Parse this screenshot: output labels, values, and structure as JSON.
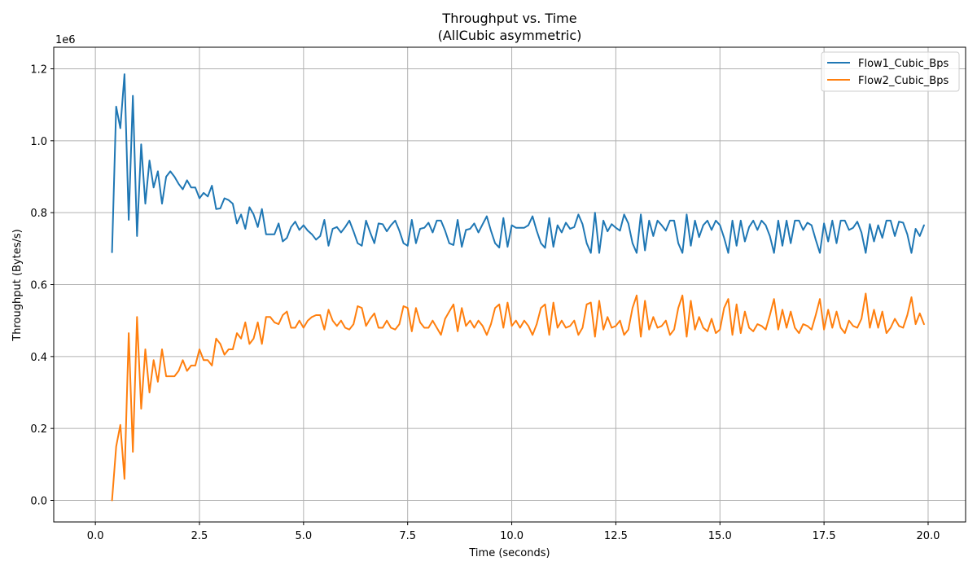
{
  "chart_data": {
    "type": "line",
    "title": "Throughput vs. Time",
    "subtitle": "(AllCubic asymmetric)",
    "xlabel": "Time (seconds)",
    "ylabel": "Throughput (Bytes/s)",
    "y_offset_text": "1e6",
    "xlim": [
      -1.0,
      20.9
    ],
    "ylim": [
      -0.06,
      1.26
    ],
    "y_scale_factor": 1000000,
    "x_ticks": [
      0.0,
      2.5,
      5.0,
      7.5,
      10.0,
      12.5,
      15.0,
      17.5,
      20.0
    ],
    "x_tick_labels": [
      "0.0",
      "2.5",
      "5.0",
      "7.5",
      "10.0",
      "12.5",
      "15.0",
      "17.5",
      "20.0"
    ],
    "y_ticks": [
      0.0,
      0.2,
      0.4,
      0.6,
      0.8,
      1.0,
      1.2
    ],
    "y_tick_labels": [
      "0.0",
      "0.2",
      "0.4",
      "0.6",
      "0.8",
      "1.0",
      "1.2"
    ],
    "grid": true,
    "legend_position": "top-right",
    "series": [
      {
        "name": "Flow1_Cubic_Bps",
        "color": "#1f77b4",
        "x": [
          0.4,
          0.5,
          0.6,
          0.7,
          0.8,
          0.9,
          1.0,
          1.1,
          1.2,
          1.3,
          1.4,
          1.5,
          1.6,
          1.7,
          1.8,
          1.9,
          2.0,
          2.1,
          2.2,
          2.3,
          2.4,
          2.5,
          2.6,
          2.7,
          2.8,
          2.9,
          3.0,
          3.1,
          3.2,
          3.3,
          3.4,
          3.5,
          3.6,
          3.7,
          3.8,
          3.9,
          4.0,
          4.1,
          4.2,
          4.3,
          4.4,
          4.5,
          4.6,
          4.7,
          4.8,
          4.9,
          5.0,
          5.1,
          5.2,
          5.3,
          5.4,
          5.5,
          5.6,
          5.7,
          5.8,
          5.9,
          6.0,
          6.1,
          6.2,
          6.3,
          6.4,
          6.5,
          6.6,
          6.7,
          6.8,
          6.9,
          7.0,
          7.1,
          7.2,
          7.3,
          7.4,
          7.5,
          7.6,
          7.7,
          7.8,
          7.9,
          8.0,
          8.1,
          8.2,
          8.3,
          8.4,
          8.5,
          8.6,
          8.7,
          8.8,
          8.9,
          9.0,
          9.1,
          9.2,
          9.3,
          9.4,
          9.5,
          9.6,
          9.7,
          9.8,
          9.9,
          10.0,
          10.1,
          10.2,
          10.3,
          10.4,
          10.5,
          10.6,
          10.7,
          10.8,
          10.9,
          11.0,
          11.1,
          11.2,
          11.3,
          11.4,
          11.5,
          11.6,
          11.7,
          11.8,
          11.9,
          12.0,
          12.1,
          12.2,
          12.3,
          12.4,
          12.5,
          12.6,
          12.7,
          12.8,
          12.9,
          13.0,
          13.1,
          13.2,
          13.3,
          13.4,
          13.5,
          13.6,
          13.7,
          13.8,
          13.9,
          14.0,
          14.1,
          14.2,
          14.3,
          14.4,
          14.5,
          14.6,
          14.7,
          14.8,
          14.9,
          15.0,
          15.1,
          15.2,
          15.3,
          15.4,
          15.5,
          15.6,
          15.7,
          15.8,
          15.9,
          16.0,
          16.1,
          16.2,
          16.3,
          16.4,
          16.5,
          16.6,
          16.7,
          16.8,
          16.9,
          17.0,
          17.1,
          17.2,
          17.3,
          17.4,
          17.5,
          17.6,
          17.7,
          17.8,
          17.9,
          18.0,
          18.1,
          18.2,
          18.3,
          18.4,
          18.5,
          18.6,
          18.7,
          18.8,
          18.9,
          19.0,
          19.1,
          19.2,
          19.3,
          19.4,
          19.5,
          19.6,
          19.7,
          19.8,
          19.9
        ],
        "y": [
          0.69,
          1.095,
          1.035,
          1.185,
          0.78,
          1.125,
          0.735,
          0.99,
          0.825,
          0.945,
          0.87,
          0.915,
          0.825,
          0.9,
          0.915,
          0.9,
          0.88,
          0.865,
          0.89,
          0.87,
          0.87,
          0.84,
          0.855,
          0.845,
          0.875,
          0.81,
          0.812,
          0.84,
          0.835,
          0.825,
          0.77,
          0.795,
          0.755,
          0.815,
          0.795,
          0.76,
          0.81,
          0.74,
          0.74,
          0.74,
          0.77,
          0.72,
          0.73,
          0.76,
          0.775,
          0.752,
          0.765,
          0.75,
          0.74,
          0.725,
          0.735,
          0.78,
          0.708,
          0.755,
          0.76,
          0.745,
          0.76,
          0.778,
          0.748,
          0.715,
          0.708,
          0.778,
          0.745,
          0.715,
          0.77,
          0.768,
          0.748,
          0.765,
          0.778,
          0.75,
          0.715,
          0.708,
          0.78,
          0.715,
          0.755,
          0.758,
          0.772,
          0.745,
          0.778,
          0.778,
          0.75,
          0.715,
          0.71,
          0.78,
          0.705,
          0.752,
          0.755,
          0.77,
          0.745,
          0.768,
          0.79,
          0.75,
          0.715,
          0.703,
          0.785,
          0.705,
          0.765,
          0.758,
          0.758,
          0.758,
          0.765,
          0.79,
          0.75,
          0.715,
          0.702,
          0.785,
          0.705,
          0.765,
          0.745,
          0.772,
          0.755,
          0.76,
          0.795,
          0.768,
          0.715,
          0.688,
          0.8,
          0.688,
          0.778,
          0.748,
          0.768,
          0.758,
          0.75,
          0.795,
          0.77,
          0.715,
          0.688,
          0.795,
          0.695,
          0.778,
          0.735,
          0.778,
          0.765,
          0.75,
          0.778,
          0.778,
          0.715,
          0.688,
          0.795,
          0.708,
          0.778,
          0.732,
          0.765,
          0.778,
          0.752,
          0.778,
          0.765,
          0.73,
          0.688,
          0.778,
          0.708,
          0.778,
          0.72,
          0.76,
          0.778,
          0.752,
          0.778,
          0.765,
          0.735,
          0.688,
          0.778,
          0.708,
          0.778,
          0.715,
          0.778,
          0.778,
          0.752,
          0.772,
          0.765,
          0.725,
          0.688,
          0.77,
          0.72,
          0.778,
          0.715,
          0.778,
          0.778,
          0.752,
          0.758,
          0.775,
          0.745,
          0.688,
          0.768,
          0.72,
          0.765,
          0.73,
          0.778,
          0.778,
          0.735,
          0.775,
          0.772,
          0.74,
          0.688,
          0.755,
          0.735,
          0.765
        ]
      },
      {
        "name": "Flow2_Cubic_Bps",
        "color": "#ff7f0e",
        "x": [
          0.4,
          0.5,
          0.6,
          0.7,
          0.8,
          0.9,
          1.0,
          1.1,
          1.2,
          1.3,
          1.4,
          1.5,
          1.6,
          1.7,
          1.8,
          1.9,
          2.0,
          2.1,
          2.2,
          2.3,
          2.4,
          2.5,
          2.6,
          2.7,
          2.8,
          2.9,
          3.0,
          3.1,
          3.2,
          3.3,
          3.4,
          3.5,
          3.6,
          3.7,
          3.8,
          3.9,
          4.0,
          4.1,
          4.2,
          4.3,
          4.4,
          4.5,
          4.6,
          4.7,
          4.8,
          4.9,
          5.0,
          5.1,
          5.2,
          5.3,
          5.4,
          5.5,
          5.6,
          5.7,
          5.8,
          5.9,
          6.0,
          6.1,
          6.2,
          6.3,
          6.4,
          6.5,
          6.6,
          6.7,
          6.8,
          6.9,
          7.0,
          7.1,
          7.2,
          7.3,
          7.4,
          7.5,
          7.6,
          7.7,
          7.8,
          7.9,
          8.0,
          8.1,
          8.2,
          8.3,
          8.4,
          8.5,
          8.6,
          8.7,
          8.8,
          8.9,
          9.0,
          9.1,
          9.2,
          9.3,
          9.4,
          9.5,
          9.6,
          9.7,
          9.8,
          9.9,
          10.0,
          10.1,
          10.2,
          10.3,
          10.4,
          10.5,
          10.6,
          10.7,
          10.8,
          10.9,
          11.0,
          11.1,
          11.2,
          11.3,
          11.4,
          11.5,
          11.6,
          11.7,
          11.8,
          11.9,
          12.0,
          12.1,
          12.2,
          12.3,
          12.4,
          12.5,
          12.6,
          12.7,
          12.8,
          12.9,
          13.0,
          13.1,
          13.2,
          13.3,
          13.4,
          13.5,
          13.6,
          13.7,
          13.8,
          13.9,
          14.0,
          14.1,
          14.2,
          14.3,
          14.4,
          14.5,
          14.6,
          14.7,
          14.8,
          14.9,
          15.0,
          15.1,
          15.2,
          15.3,
          15.4,
          15.5,
          15.6,
          15.7,
          15.8,
          15.9,
          16.0,
          16.1,
          16.2,
          16.3,
          16.4,
          16.5,
          16.6,
          16.7,
          16.8,
          16.9,
          17.0,
          17.1,
          17.2,
          17.3,
          17.4,
          17.5,
          17.6,
          17.7,
          17.8,
          17.9,
          18.0,
          18.1,
          18.2,
          18.3,
          18.4,
          18.5,
          18.6,
          18.7,
          18.8,
          18.9,
          19.0,
          19.1,
          19.2,
          19.3,
          19.4,
          19.5,
          19.6,
          19.7,
          19.8,
          19.9
        ],
        "y": [
          0.0,
          0.15,
          0.21,
          0.06,
          0.465,
          0.135,
          0.51,
          0.255,
          0.42,
          0.3,
          0.39,
          0.33,
          0.42,
          0.345,
          0.345,
          0.345,
          0.36,
          0.39,
          0.36,
          0.375,
          0.375,
          0.42,
          0.39,
          0.39,
          0.375,
          0.45,
          0.435,
          0.405,
          0.42,
          0.42,
          0.465,
          0.45,
          0.495,
          0.435,
          0.45,
          0.495,
          0.435,
          0.51,
          0.51,
          0.495,
          0.49,
          0.515,
          0.525,
          0.48,
          0.48,
          0.5,
          0.48,
          0.5,
          0.51,
          0.515,
          0.515,
          0.475,
          0.53,
          0.5,
          0.485,
          0.5,
          0.48,
          0.475,
          0.49,
          0.54,
          0.535,
          0.485,
          0.505,
          0.52,
          0.48,
          0.48,
          0.5,
          0.48,
          0.475,
          0.49,
          0.54,
          0.535,
          0.47,
          0.535,
          0.495,
          0.48,
          0.48,
          0.5,
          0.48,
          0.46,
          0.505,
          0.525,
          0.545,
          0.47,
          0.535,
          0.485,
          0.5,
          0.48,
          0.5,
          0.485,
          0.46,
          0.49,
          0.535,
          0.545,
          0.48,
          0.55,
          0.485,
          0.5,
          0.48,
          0.5,
          0.485,
          0.46,
          0.49,
          0.535,
          0.545,
          0.46,
          0.55,
          0.48,
          0.5,
          0.48,
          0.485,
          0.5,
          0.46,
          0.48,
          0.545,
          0.55,
          0.455,
          0.555,
          0.475,
          0.51,
          0.48,
          0.485,
          0.5,
          0.46,
          0.475,
          0.535,
          0.57,
          0.455,
          0.555,
          0.475,
          0.51,
          0.48,
          0.485,
          0.5,
          0.46,
          0.475,
          0.535,
          0.57,
          0.455,
          0.555,
          0.475,
          0.51,
          0.48,
          0.47,
          0.505,
          0.465,
          0.475,
          0.535,
          0.56,
          0.46,
          0.545,
          0.465,
          0.525,
          0.48,
          0.47,
          0.49,
          0.485,
          0.475,
          0.515,
          0.56,
          0.475,
          0.53,
          0.48,
          0.525,
          0.48,
          0.465,
          0.49,
          0.485,
          0.475,
          0.515,
          0.56,
          0.475,
          0.53,
          0.48,
          0.525,
          0.48,
          0.465,
          0.5,
          0.485,
          0.48,
          0.505,
          0.575,
          0.48,
          0.53,
          0.48,
          0.525,
          0.465,
          0.48,
          0.505,
          0.485,
          0.48,
          0.515,
          0.565,
          0.49,
          0.52,
          0.49
        ]
      }
    ]
  }
}
